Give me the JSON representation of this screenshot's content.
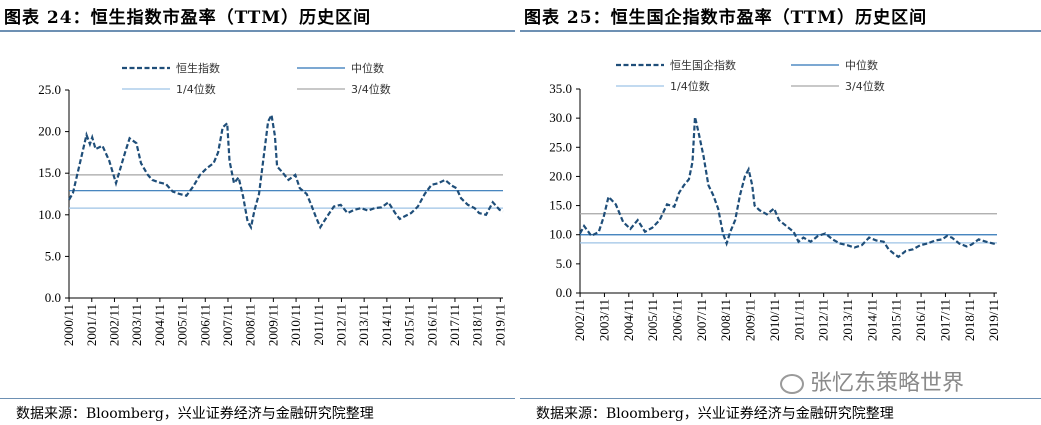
{
  "left": {
    "title": "图表 24：恒生指数市盈率（TTM）历史区间",
    "source": "数据来源：Bloomberg，兴业证券经济与金融研究院整理",
    "chart_data": {
      "type": "line",
      "title": "",
      "x_ticks": [
        "2000/11",
        "2001/11",
        "2002/11",
        "2003/11",
        "2004/11",
        "2005/11",
        "2006/11",
        "2007/11",
        "2008/11",
        "2009/11",
        "2010/11",
        "2011/11",
        "2012/11",
        "2013/11",
        "2014/11",
        "2015/11",
        "2016/11",
        "2017/11",
        "2018/11",
        "2019/11"
      ],
      "y_ticks": [
        "0.0",
        "5.0",
        "10.0",
        "15.0",
        "20.0",
        "25.0"
      ],
      "ylim": [
        0,
        25
      ],
      "xlim": [
        2000.83,
        2019.95
      ],
      "legend": [
        "恒生指数",
        "中位数",
        "1/4位数",
        "3/4位数"
      ],
      "legend_position": "top",
      "series": [
        {
          "name": "恒生指数",
          "style": "dashed",
          "color": "#1f4e79",
          "x": [
            2000.83,
            2001.0,
            2001.6,
            2001.75,
            2001.85,
            2002.0,
            2002.3,
            2002.6,
            2002.9,
            2003.3,
            2003.5,
            2003.8,
            2004.0,
            2004.3,
            2004.5,
            2004.8,
            2005.1,
            2005.4,
            2005.7,
            2006.0,
            2006.3,
            2006.6,
            2006.9,
            2007.2,
            2007.4,
            2007.6,
            2007.8,
            2007.9,
            2008.1,
            2008.3,
            2008.5,
            2008.7,
            2008.85,
            2009.0,
            2009.2,
            2009.4,
            2009.6,
            2009.75,
            2009.9,
            2010.0,
            2010.2,
            2010.5,
            2010.8,
            2011.0,
            2011.3,
            2011.5,
            2011.7,
            2011.9,
            2012.2,
            2012.5,
            2012.8,
            2013.1,
            2013.4,
            2013.7,
            2014.0,
            2014.3,
            2014.6,
            2014.9,
            2015.2,
            2015.4,
            2015.6,
            2015.9,
            2016.2,
            2016.5,
            2016.8,
            2017.1,
            2017.4,
            2017.7,
            2017.9,
            2018.1,
            2018.4,
            2018.7,
            2018.9,
            2019.2,
            2019.5,
            2019.8,
            2019.95
          ],
          "values": [
            11.8,
            12.6,
            19.6,
            18.5,
            19.3,
            17.9,
            18.3,
            16.5,
            13.8,
            17.5,
            19.2,
            18.6,
            16.2,
            14.8,
            14.2,
            13.9,
            13.7,
            12.8,
            12.5,
            12.3,
            13.4,
            14.8,
            15.6,
            16.2,
            17.5,
            20.5,
            21.0,
            16.5,
            13.8,
            14.5,
            12.2,
            9.2,
            8.5,
            10.5,
            12.5,
            16.8,
            21.2,
            22.0,
            19.5,
            15.8,
            15.2,
            14.2,
            14.8,
            13.2,
            12.5,
            11.2,
            9.8,
            8.5,
            9.8,
            11.0,
            11.2,
            10.2,
            10.6,
            10.8,
            10.5,
            10.8,
            10.9,
            11.5,
            10.2,
            9.5,
            9.8,
            10.2,
            11.0,
            12.5,
            13.6,
            13.8,
            14.2,
            13.5,
            13.2,
            12.0,
            11.2,
            10.8,
            10.2,
            10.0,
            11.5,
            10.6,
            10.4
          ]
        },
        {
          "name": "中位数",
          "style": "solid",
          "color": "#2e75b6",
          "values": [
            12.9
          ]
        },
        {
          "name": "1/4位数",
          "style": "solid",
          "color": "#9dc3e6",
          "values": [
            10.8
          ]
        },
        {
          "name": "3/4位数",
          "style": "solid",
          "color": "#a6a6a6",
          "values": [
            14.8
          ]
        }
      ]
    }
  },
  "right": {
    "title": "图表 25：恒生国企指数市盈率（TTM）历史区间",
    "source": "数据来源：Bloomberg，兴业证券经济与金融研究院整理",
    "chart_data": {
      "type": "line",
      "title": "",
      "x_ticks": [
        "2002/11",
        "2003/11",
        "2004/11",
        "2005/11",
        "2006/11",
        "2007/11",
        "2008/11",
        "2009/11",
        "2010/11",
        "2011/11",
        "2012/11",
        "2013/11",
        "2014/11",
        "2015/11",
        "2016/11",
        "2017/11",
        "2018/11",
        "2019/11"
      ],
      "y_ticks": [
        "0.0",
        "5.0",
        "10.0",
        "15.0",
        "20.0",
        "25.0",
        "30.0",
        "35.0"
      ],
      "ylim": [
        0,
        35
      ],
      "xlim": [
        2002.83,
        2019.95
      ],
      "legend": [
        "恒生国企指数",
        "中位数",
        "1/4位数",
        "3/4位数"
      ],
      "legend_position": "top",
      "series": [
        {
          "name": "恒生国企指数",
          "style": "dashed",
          "color": "#1f4e79",
          "x": [
            2002.83,
            2003.0,
            2003.3,
            2003.6,
            2003.8,
            2004.0,
            2004.3,
            2004.6,
            2004.9,
            2005.2,
            2005.5,
            2005.8,
            2006.1,
            2006.4,
            2006.7,
            2006.9,
            2007.1,
            2007.3,
            2007.45,
            2007.55,
            2007.7,
            2007.9,
            2008.1,
            2008.3,
            2008.5,
            2008.7,
            2008.85,
            2009.0,
            2009.2,
            2009.4,
            2009.6,
            2009.75,
            2009.9,
            2010.0,
            2010.2,
            2010.5,
            2010.8,
            2011.0,
            2011.3,
            2011.6,
            2011.8,
            2012.0,
            2012.3,
            2012.6,
            2012.9,
            2013.2,
            2013.5,
            2013.8,
            2014.1,
            2014.4,
            2014.7,
            2015.0,
            2015.3,
            2015.5,
            2015.7,
            2015.9,
            2016.2,
            2016.5,
            2016.8,
            2017.1,
            2017.4,
            2017.7,
            2017.9,
            2018.1,
            2018.4,
            2018.7,
            2018.9,
            2019.2,
            2019.5,
            2019.8,
            2019.95
          ],
          "values": [
            10.2,
            11.5,
            9.8,
            10.5,
            13.0,
            16.5,
            15.2,
            12.2,
            11.0,
            12.5,
            10.5,
            11.2,
            12.5,
            15.2,
            14.8,
            17.2,
            18.5,
            19.5,
            22.5,
            30.2,
            27.5,
            23.5,
            18.5,
            16.8,
            14.5,
            10.2,
            8.5,
            10.5,
            12.5,
            16.8,
            20.0,
            21.2,
            18.5,
            15.0,
            14.2,
            13.5,
            14.5,
            12.5,
            11.5,
            10.5,
            8.8,
            9.5,
            8.8,
            9.8,
            10.2,
            9.2,
            8.5,
            8.2,
            7.8,
            8.2,
            9.5,
            9.0,
            8.8,
            7.5,
            6.8,
            6.2,
            7.2,
            7.5,
            8.2,
            8.5,
            9.0,
            9.2,
            9.8,
            9.5,
            8.5,
            8.0,
            8.3,
            9.2,
            8.8,
            8.5,
            8.3
          ]
        },
        {
          "name": "中位数",
          "style": "solid",
          "color": "#2e75b6",
          "values": [
            10.0
          ]
        },
        {
          "name": "1/4位数",
          "style": "solid",
          "color": "#9dc3e6",
          "values": [
            8.6
          ]
        },
        {
          "name": "3/4位数",
          "style": "solid",
          "color": "#a6a6a6",
          "values": [
            13.6
          ]
        }
      ]
    }
  },
  "watermark": "张忆东策略世界"
}
